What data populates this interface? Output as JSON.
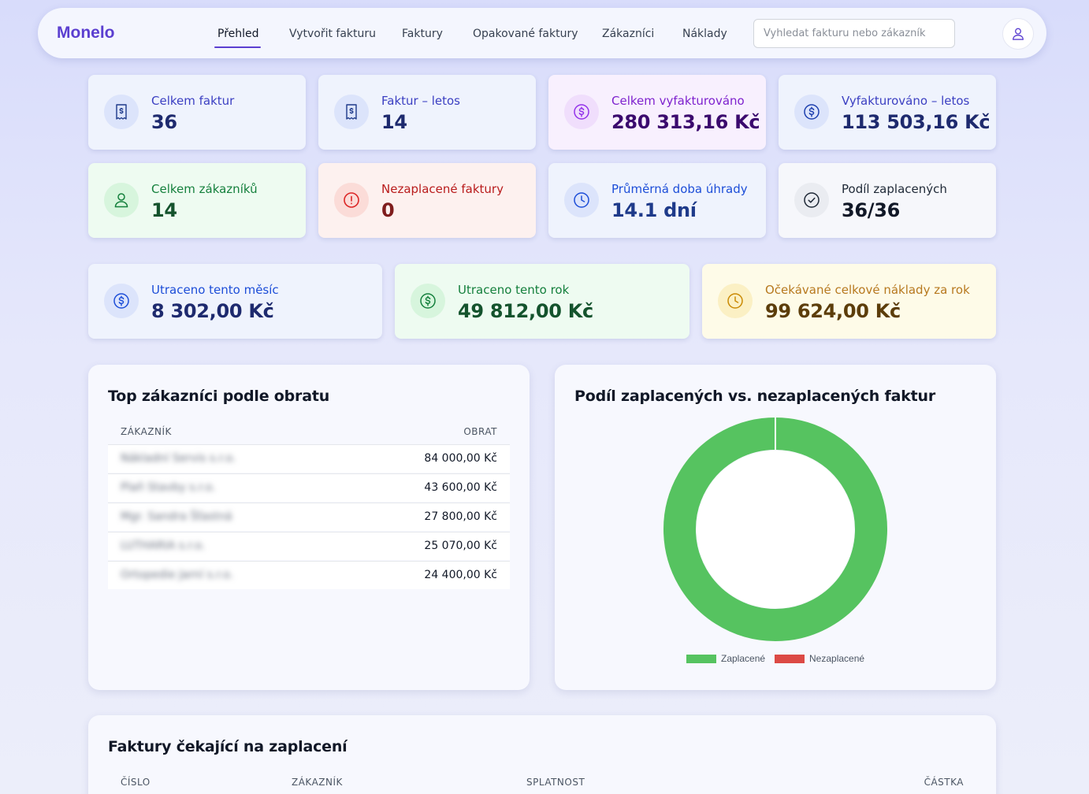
{
  "app": {
    "name": "Monelo"
  },
  "nav": {
    "items": [
      {
        "label": "Přehled",
        "active": true
      },
      {
        "label": "Vytvořit fakturu"
      },
      {
        "label": "Faktury"
      },
      {
        "label": "Opakované faktury"
      },
      {
        "label": "Zákazníci"
      },
      {
        "label": "Náklady"
      }
    ],
    "search_placeholder": "Vyhledat fakturu nebo zákazník"
  },
  "stats": [
    {
      "label": "Celkem faktur",
      "value": "36",
      "icon": "receipt-icon"
    },
    {
      "label": "Faktur – letos",
      "value": "14",
      "icon": "receipt-icon"
    },
    {
      "label": "Celkem vyfakturováno",
      "value": "280 313,16 Kč",
      "icon": "dollar-icon"
    },
    {
      "label": "Vyfakturováno – letos",
      "value": "113 503,16 Kč",
      "icon": "dollar-icon"
    },
    {
      "label": "Celkem zákazníků",
      "value": "14",
      "icon": "user-icon"
    },
    {
      "label": "Nezaplacené faktury",
      "value": "0",
      "icon": "alert-icon"
    },
    {
      "label": "Průměrná doba úhrady",
      "value": "14.1 dní",
      "icon": "clock-icon"
    },
    {
      "label": "Podíl zaplacených",
      "value": "36/36",
      "icon": "check-circle-icon"
    }
  ],
  "expenses": [
    {
      "label": "Utraceno tento měsíc",
      "value": "8 302,00 Kč",
      "icon": "dollar-icon"
    },
    {
      "label": "Utraceno tento rok",
      "value": "49 812,00 Kč",
      "icon": "dollar-icon"
    },
    {
      "label": "Očekávané celkové náklady za rok",
      "value": "99 624,00 Kč",
      "icon": "clock-icon"
    }
  ],
  "top_customers": {
    "title": "Top zákazníci podle obratu",
    "col_customer": "ZÁKAZNÍK",
    "col_turnover": "OBRAT",
    "rows": [
      {
        "name": "Nákladní Servis s.r.o.",
        "value": "84 000,00 Kč"
      },
      {
        "name": "Plaň Stavby s.r.o.",
        "value": "43 600,00 Kč"
      },
      {
        "name": "Mgr. Sandra Šťastná",
        "value": "27 800,00 Kč"
      },
      {
        "name": "LUTHARIA s.r.o.",
        "value": "25 070,00 Kč"
      },
      {
        "name": "Ortopedie Jarní s.r.o.",
        "value": "24 400,00 Kč"
      }
    ]
  },
  "chart_data": {
    "type": "pie",
    "title": "Podíl zaplacených vs. nezaplacených faktur",
    "categories": [
      "Zaplacené",
      "Nezaplacené"
    ],
    "values": [
      36,
      0
    ],
    "colors": [
      "#56c360",
      "#dc4a45"
    ],
    "legend": "bottom"
  },
  "pending": {
    "title": "Faktury čekající na zaplacení",
    "col_number": "ČÍSLO",
    "col_customer": "ZÁKAZNÍK",
    "col_due": "SPLATNOST",
    "col_amount": "ČÁSTKA"
  },
  "colors": {
    "accent": "#5b3fd0",
    "paid": "#56c360",
    "unpaid": "#dc4a45"
  }
}
